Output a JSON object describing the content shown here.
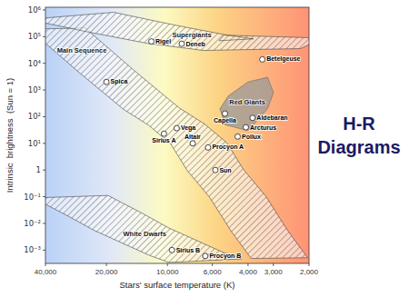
{
  "chart_data": {
    "type": "scatter",
    "title": "H-R\nDiagrams",
    "xlabel": "Stars' surface temperature (K)",
    "ylabel": "Intrinsic  brightness  (Sun = 1)",
    "log": true,
    "grid": false,
    "xlim": [
      40000,
      2000
    ],
    "ylim": [
      0.00031622776601683794,
      1258925.4117941672
    ],
    "xticks": [
      {
        "value": 40000,
        "label": "40,000"
      },
      {
        "value": 20000,
        "label": "20,000"
      },
      {
        "value": 10000,
        "label": "10,000"
      },
      {
        "value": 6000,
        "label": "6,000"
      },
      {
        "value": 4000,
        "label": "4,000"
      },
      {
        "value": 3000,
        "label": "3,000"
      },
      {
        "value": 2000,
        "label": "2,000"
      }
    ],
    "yticks": [
      {
        "value": 0.001,
        "label": "10⁻³"
      },
      {
        "value": 0.01,
        "label": "10⁻²"
      },
      {
        "value": 0.1,
        "label": "10⁻¹"
      },
      1,
      {
        "value": 10,
        "label": "10¹"
      },
      {
        "value": 100,
        "label": "10²"
      },
      {
        "value": 1000,
        "label": "10³"
      },
      {
        "value": 10000,
        "label": "10⁴"
      },
      {
        "value": 100000,
        "label": "10⁵"
      },
      {
        "value": 1000000,
        "label": "10⁶"
      }
    ],
    "x": [
      12000,
      3400,
      8500,
      20000,
      5200,
      3800,
      9000,
      4100,
      10400,
      4500,
      7500,
      6300,
      5800,
      9500,
      6500
    ],
    "values": [
      66000,
      14000,
      54000,
      2000,
      130,
      90,
      37,
      40,
      23,
      18,
      10,
      7,
      1,
      0.001,
      0.0006
    ],
    "point_labels": [
      "Rigel",
      "Betelgeuse",
      "Deneb",
      "Spica",
      "Capella",
      "Aldebaran",
      "Vega",
      "Arcturus",
      "Sirius A",
      "Pollux",
      "Altair",
      "Procyon A",
      "Sun",
      "Sirius B",
      "Procyon B"
    ],
    "regions": [
      {
        "name": "Main Sequence",
        "type": "band",
        "x": [
          35000,
          20000,
          12000,
          9000,
          7000,
          5800,
          4500,
          3500,
          2800
        ],
        "y": [
          200000,
          5000,
          200,
          50,
          10,
          1,
          0.1,
          0.005,
          0.0005
        ],
        "width": 0.28
      },
      {
        "name": "Supergiants",
        "type": "band",
        "x": [
          30000,
          15000,
          8000,
          5000,
          3500,
          3000
        ],
        "y": [
          600000,
          200000,
          80000,
          50000,
          50000,
          100000
        ],
        "width": 0.5
      },
      {
        "name": "Red Giants",
        "type": "area",
        "x": [
          5500,
          5200,
          4000,
          3200,
          3000,
          3200,
          4000,
          5000
        ],
        "y": [
          200,
          50,
          30,
          200,
          800,
          3000,
          2000,
          600
        ]
      },
      {
        "name": "White Dwarfs",
        "type": "band",
        "x": [
          30000,
          20000,
          15000,
          10000,
          8000,
          6500
        ],
        "y": [
          0.1,
          0.02,
          0.006,
          0.0015,
          0.0007,
          0.0004
        ],
        "width": 0.38
      }
    ]
  }
}
